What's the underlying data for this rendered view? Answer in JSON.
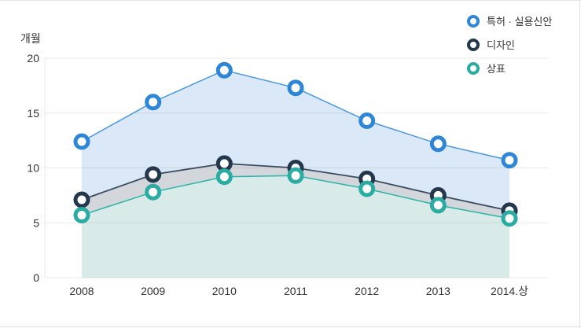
{
  "page": {
    "background": "#ffffff",
    "border_color": "#e0e0e0"
  },
  "chart_data": {
    "type": "line",
    "title": "",
    "ylabel": "개월",
    "xlabel": "",
    "categories": [
      "2008",
      "2009",
      "2010",
      "2011",
      "2012",
      "2013",
      "2014.상"
    ],
    "series": [
      {
        "name": "특허 · 실용신안",
        "values": [
          12.4,
          16.0,
          18.9,
          17.3,
          14.3,
          12.2,
          10.7
        ],
        "marker_color": "#2e86d8",
        "line_color": "#4a99e0",
        "area_color": "#dbe8f7"
      },
      {
        "name": "디자인",
        "values": [
          7.1,
          9.4,
          10.4,
          10.0,
          9.0,
          7.5,
          6.1
        ],
        "marker_color": "#24384d",
        "line_color": "#3a4c60",
        "area_color": "#d3d6da"
      },
      {
        "name": "상표",
        "values": [
          5.7,
          7.8,
          9.2,
          9.3,
          8.1,
          6.6,
          5.4
        ],
        "marker_color": "#2aaca2",
        "line_color": "#2bb3a7",
        "area_color": "#d8ebe9"
      }
    ],
    "yticks": [
      0,
      5,
      10,
      15,
      20
    ],
    "ylim": [
      0,
      20
    ],
    "grid": true,
    "area_fill": true,
    "legend_position": "top-right",
    "marker_style": "ring",
    "tick_color": "#333333",
    "grid_color": "rgba(110,110,110,0.16)"
  }
}
